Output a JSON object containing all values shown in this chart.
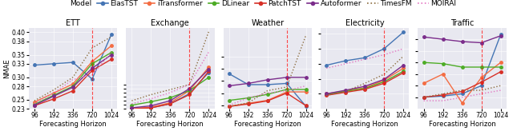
{
  "horizons": [
    96,
    192,
    336,
    720,
    1024
  ],
  "vline_x": 720,
  "datasets": {
    "ETT": {
      "ylim": [
        0.23,
        0.41
      ],
      "yticks": [
        0.23,
        0.25,
        0.28,
        0.3,
        0.33,
        0.35,
        0.38,
        0.4
      ],
      "models": {
        "ElasTST": {
          "color": "#4575b4",
          "values": [
            0.327,
            0.33,
            0.333,
            0.296,
            0.395
          ],
          "linestyle": "-",
          "marker": "o"
        },
        "iTransformer": {
          "color": "#f46d43",
          "values": [
            0.245,
            0.265,
            0.285,
            0.335,
            0.37
          ],
          "linestyle": "-",
          "marker": "o"
        },
        "DLinear": {
          "color": "#4dac26",
          "values": [
            0.24,
            0.26,
            0.28,
            0.33,
            0.355
          ],
          "linestyle": "-",
          "marker": "o"
        },
        "PatchTST": {
          "color": "#d73027",
          "values": [
            0.237,
            0.252,
            0.27,
            0.315,
            0.34
          ],
          "linestyle": "-",
          "marker": "o"
        },
        "Autoformer": {
          "color": "#7b2d8b",
          "values": [
            0.238,
            0.258,
            0.278,
            0.32,
            0.35
          ],
          "linestyle": "-",
          "marker": "o"
        },
        "TimesFM": {
          "color": "#8c6d3f",
          "values": [
            0.248,
            0.272,
            0.3,
            0.365,
            0.39
          ],
          "linestyle": ":",
          "marker": ""
        },
        "MOIRAI": {
          "color": "#e377c2",
          "values": [
            0.242,
            0.265,
            0.295,
            0.305,
            0.355
          ],
          "linestyle": ":",
          "marker": ""
        }
      }
    },
    "Exchange": {
      "ylim": [
        0.02,
        0.42
      ],
      "yticks": [
        0.02,
        0.04,
        0.06,
        0.08,
        0.1,
        0.12,
        0.14
      ],
      "models": {
        "ElasTST": {
          "color": "#4575b4",
          "values": [
            0.02,
            0.025,
            0.045,
            0.095,
            0.2
          ],
          "linestyle": "-",
          "marker": "o"
        },
        "iTransformer": {
          "color": "#f46d43",
          "values": [
            0.022,
            0.028,
            0.05,
            0.11,
            0.225
          ],
          "linestyle": "-",
          "marker": "o"
        },
        "DLinear": {
          "color": "#4dac26",
          "values": [
            0.038,
            0.055,
            0.075,
            0.11,
            0.175
          ],
          "linestyle": "-",
          "marker": "o"
        },
        "PatchTST": {
          "color": "#d73027",
          "values": [
            0.02,
            0.025,
            0.045,
            0.09,
            0.205
          ],
          "linestyle": "-",
          "marker": "o"
        },
        "Autoformer": {
          "color": "#7b2d8b",
          "values": [
            0.025,
            0.035,
            0.06,
            0.12,
            0.215
          ],
          "linestyle": "-",
          "marker": "o"
        },
        "TimesFM": {
          "color": "#8c6d3f",
          "values": [
            0.06,
            0.09,
            0.115,
            0.14,
            0.4
          ],
          "linestyle": ":",
          "marker": ""
        },
        "MOIRAI": {
          "color": "#e377c2",
          "values": [
            0.045,
            0.07,
            0.1,
            0.14,
            0.3
          ],
          "linestyle": ":",
          "marker": ""
        }
      }
    },
    "Weather": {
      "ylim": [
        0.085,
        0.42
      ],
      "yticks": [
        0.1,
        0.15,
        0.2,
        0.25,
        0.3
      ],
      "models": {
        "ElasTST": {
          "color": "#4575b4",
          "values": [
            0.23,
            0.185,
            0.185,
            0.19,
            0.095
          ],
          "linestyle": "-",
          "marker": "o"
        },
        "iTransformer": {
          "color": "#f46d43",
          "values": [
            0.095,
            0.108,
            0.12,
            0.155,
            0.155
          ],
          "linestyle": "-",
          "marker": "o"
        },
        "DLinear": {
          "color": "#4dac26",
          "values": [
            0.12,
            0.13,
            0.145,
            0.165,
            0.165
          ],
          "linestyle": "-",
          "marker": "o"
        },
        "PatchTST": {
          "color": "#d73027",
          "values": [
            0.095,
            0.105,
            0.118,
            0.15,
            0.098
          ],
          "linestyle": "-",
          "marker": "o"
        },
        "Autoformer": {
          "color": "#7b2d8b",
          "values": [
            0.18,
            0.19,
            0.205,
            0.215,
            0.215
          ],
          "linestyle": "-",
          "marker": "o"
        },
        "TimesFM": {
          "color": "#8c6d3f",
          "values": [
            0.095,
            0.11,
            0.16,
            0.175,
            0.39
          ],
          "linestyle": ":",
          "marker": ""
        },
        "MOIRAI": {
          "color": "#e377c2",
          "values": [
            0.1,
            0.13,
            0.15,
            0.16,
            0.18
          ],
          "linestyle": ":",
          "marker": ""
        }
      }
    },
    "Electricity": {
      "ylim": [
        0.05,
        0.32
      ],
      "yticks": [
        0.1,
        0.15,
        0.2,
        0.25,
        0.3
      ],
      "models": {
        "ElasTST": {
          "color": "#4575b4",
          "values": [
            0.195,
            0.21,
            0.22,
            0.25,
            0.305
          ],
          "linestyle": "-",
          "marker": "o"
        },
        "iTransformer": {
          "color": "#f46d43",
          "values": [
            0.1,
            0.11,
            0.12,
            0.145,
            0.185
          ],
          "linestyle": "-",
          "marker": "o"
        },
        "DLinear": {
          "color": "#4dac26",
          "values": [
            0.098,
            0.108,
            0.118,
            0.14,
            0.175
          ],
          "linestyle": "-",
          "marker": "o"
        },
        "PatchTST": {
          "color": "#d73027",
          "values": [
            0.095,
            0.105,
            0.115,
            0.135,
            0.17
          ],
          "linestyle": "-",
          "marker": "o"
        },
        "Autoformer": {
          "color": "#7b2d8b",
          "values": [
            0.1,
            0.112,
            0.125,
            0.148,
            0.195
          ],
          "linestyle": "-",
          "marker": "o"
        },
        "TimesFM": {
          "color": "#8c6d3f",
          "values": [
            0.095,
            0.108,
            0.135,
            0.165,
            0.225
          ],
          "linestyle": ":",
          "marker": ""
        },
        "MOIRAI": {
          "color": "#e377c2",
          "values": [
            0.185,
            0.2,
            0.215,
            0.23,
            0.25
          ],
          "linestyle": ":",
          "marker": ""
        }
      }
    },
    "Traffic": {
      "ylim": [
        0.15,
        0.5
      ],
      "yticks": [
        0.2,
        0.25,
        0.3,
        0.35,
        0.4,
        0.45
      ],
      "models": {
        "ElasTST": {
          "color": "#4575b4",
          "values": [
            0.2,
            0.205,
            0.215,
            0.25,
            0.47
          ],
          "linestyle": "-",
          "marker": "o"
        },
        "iTransformer": {
          "color": "#f46d43",
          "values": [
            0.26,
            0.3,
            0.175,
            0.285,
            0.35
          ],
          "linestyle": "-",
          "marker": "o"
        },
        "DLinear": {
          "color": "#4dac26",
          "values": [
            0.35,
            0.345,
            0.33,
            0.33,
            0.33
          ],
          "linestyle": "-",
          "marker": "o"
        },
        "PatchTST": {
          "color": "#d73027",
          "values": [
            0.2,
            0.21,
            0.225,
            0.265,
            0.31
          ],
          "linestyle": "-",
          "marker": "o"
        },
        "Autoformer": {
          "color": "#7b2d8b",
          "values": [
            0.46,
            0.45,
            0.44,
            0.435,
            0.465
          ],
          "linestyle": "-",
          "marker": "o"
        },
        "TimesFM": {
          "color": "#8c6d3f",
          "values": [
            0.2,
            0.215,
            0.23,
            0.23,
            0.25
          ],
          "linestyle": ":",
          "marker": ""
        },
        "MOIRAI": {
          "color": "#e377c2",
          "values": [
            0.185,
            0.185,
            0.2,
            0.215,
            0.23
          ],
          "linestyle": ":",
          "marker": ""
        }
      }
    }
  },
  "legend_order": [
    "ElasTST",
    "iTransformer",
    "DLinear",
    "PatchTST",
    "Autoformer",
    "TimesFM",
    "MOIRAI"
  ],
  "bg_color": "#e8e8f0",
  "ylabel": "NMAE",
  "xlabel": "Forecasting Horizon",
  "title_fontsize": 7,
  "tick_fontsize": 5.5,
  "label_fontsize": 6,
  "legend_fontsize": 6.5,
  "marker_size": 2.5,
  "linewidth": 1.0
}
